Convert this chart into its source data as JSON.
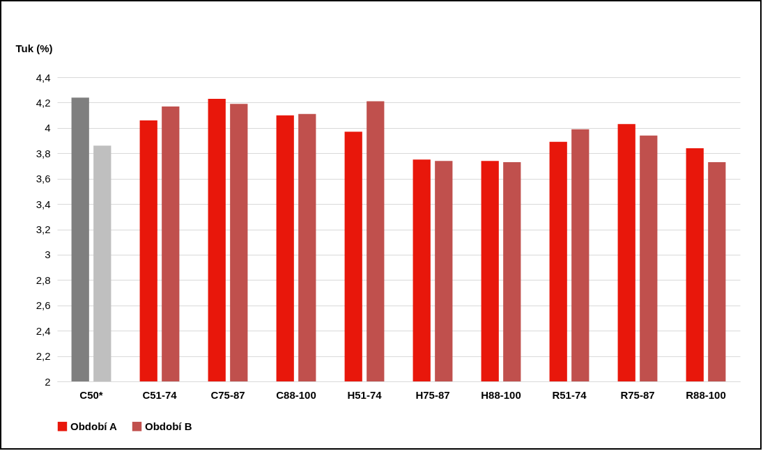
{
  "chart_data": {
    "type": "bar",
    "ylabel": "Tuk (%)",
    "categories": [
      "C50*",
      "C51-74",
      "C75-87",
      "C88-100",
      "H51-74",
      "H75-87",
      "H88-100",
      "R51-74",
      "R75-87",
      "R88-100"
    ],
    "series": [
      {
        "name": "Období A",
        "color": "#e8170b",
        "colors": [
          "#7f7f7f",
          "#e8170b",
          "#e8170b",
          "#e8170b",
          "#e8170b",
          "#e8170b",
          "#e8170b",
          "#e8170b",
          "#e8170b",
          "#e8170b"
        ],
        "values": [
          4.24,
          4.06,
          4.23,
          4.1,
          3.97,
          3.75,
          3.74,
          3.89,
          4.03,
          3.84
        ]
      },
      {
        "name": "Období B",
        "color": "#c0504d",
        "colors": [
          "#bfbfbf",
          "#c0504d",
          "#c0504d",
          "#c0504d",
          "#c0504d",
          "#c0504d",
          "#c0504d",
          "#c0504d",
          "#c0504d",
          "#c0504d"
        ],
        "values": [
          3.86,
          4.17,
          4.19,
          4.11,
          4.21,
          3.74,
          3.73,
          3.99,
          3.94,
          3.73
        ]
      }
    ],
    "ylim": [
      2,
      4.4
    ],
    "yticks": [
      2,
      {
        "value": 2.2,
        "label": "2,2"
      },
      {
        "value": 2.4,
        "label": "2,4"
      },
      {
        "value": 2.6,
        "label": "2,6"
      },
      {
        "value": 2.8,
        "label": "2,8"
      },
      3,
      {
        "value": 3.2,
        "label": "3,2"
      },
      {
        "value": 3.4,
        "label": "3,4"
      },
      {
        "value": 3.6,
        "label": "3,6"
      },
      {
        "value": 3.8,
        "label": "3,8"
      },
      4,
      {
        "value": 4.2,
        "label": "4,2"
      },
      {
        "value": 4.4,
        "label": "4,4"
      }
    ],
    "grid": "y",
    "legend": "bottom"
  }
}
